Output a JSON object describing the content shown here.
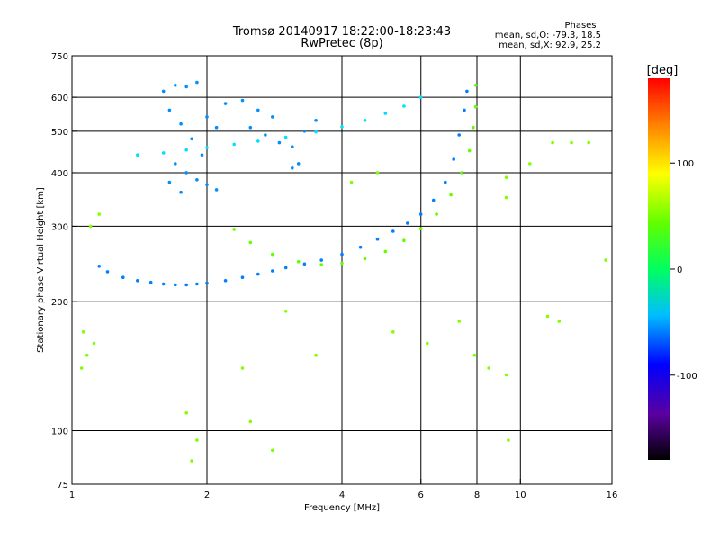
{
  "chart_data": {
    "type": "scatter",
    "title": "Tromsø 20140917 18:22:00-18:23:43",
    "subtitle": "RwPretec (8p)",
    "stats": {
      "heading": "Phases",
      "line1": "mean, sd,O: -79.3, 18.5",
      "line2": "mean, sd,X:  92.9, 25.2"
    },
    "xlabel": "Frequency [MHz]",
    "ylabel": "Stationary phase Virtual Height [km]",
    "x_scale": "log",
    "y_scale": "log",
    "xlim": [
      1,
      16
    ],
    "ylim": [
      75,
      750
    ],
    "x_ticks": [
      {
        "value": 1,
        "label": "1"
      },
      {
        "value": 2,
        "label": "2"
      },
      {
        "value": 4,
        "label": "4"
      },
      {
        "value": 6,
        "label": "6"
      },
      {
        "value": 8,
        "label": "8"
      },
      {
        "value": 10,
        "label": "10"
      },
      {
        "value": 16,
        "label": "16"
      }
    ],
    "x_gridlines": [
      2,
      4,
      6,
      8,
      10
    ],
    "y_ticks": [
      {
        "value": 75,
        "label": "75"
      },
      {
        "value": 100,
        "label": "100"
      },
      {
        "value": 200,
        "label": "200"
      },
      {
        "value": 300,
        "label": "300"
      },
      {
        "value": 400,
        "label": "400"
      },
      {
        "value": 500,
        "label": "500"
      },
      {
        "value": 600,
        "label": "600"
      },
      {
        "value": 750,
        "label": "750"
      }
    ],
    "y_gridlines": [
      100,
      200,
      300,
      400,
      500,
      600
    ],
    "colorbar": {
      "label": "[deg]",
      "range": [
        -180,
        180
      ],
      "ticks": [
        {
          "value": 100,
          "label": "100"
        },
        {
          "value": 0,
          "label": "0"
        },
        {
          "value": -100,
          "label": "-100"
        }
      ]
    },
    "series": [
      {
        "role": "o-trace-low",
        "points": [
          [
            1.15,
            242
          ],
          [
            1.2,
            235
          ],
          [
            1.3,
            228
          ],
          [
            1.4,
            224
          ],
          [
            1.5,
            222
          ],
          [
            1.6,
            220
          ],
          [
            1.7,
            219
          ],
          [
            1.8,
            219
          ],
          [
            1.9,
            220
          ],
          [
            2.0,
            221
          ],
          [
            2.2,
            224
          ],
          [
            2.4,
            228
          ],
          [
            2.6,
            232
          ],
          [
            2.8,
            236
          ],
          [
            3.0,
            240
          ],
          [
            3.3,
            245
          ],
          [
            3.6,
            250
          ],
          [
            4.0,
            258
          ],
          [
            4.4,
            268
          ],
          [
            4.8,
            280
          ],
          [
            5.2,
            292
          ],
          [
            5.6,
            305
          ],
          [
            6.0,
            320
          ],
          [
            6.4,
            345
          ],
          [
            6.8,
            380
          ],
          [
            7.1,
            430
          ],
          [
            7.3,
            490
          ],
          [
            7.5,
            560
          ],
          [
            7.6,
            620
          ]
        ],
        "phase": -100
      },
      {
        "role": "x-trace-low",
        "points": [
          [
            2.3,
            295
          ],
          [
            2.5,
            275
          ],
          [
            2.8,
            258
          ],
          [
            3.2,
            248
          ],
          [
            3.6,
            244
          ],
          [
            4.0,
            246
          ],
          [
            4.5,
            252
          ],
          [
            5.0,
            262
          ],
          [
            5.5,
            278
          ],
          [
            6.0,
            296
          ],
          [
            6.5,
            320
          ],
          [
            7.0,
            355
          ],
          [
            7.4,
            400
          ],
          [
            7.7,
            450
          ],
          [
            7.85,
            510
          ],
          [
            7.95,
            570
          ],
          [
            7.95,
            640
          ]
        ],
        "phase": 50
      },
      {
        "role": "o-trace-high",
        "points": [
          [
            1.4,
            440
          ],
          [
            1.6,
            445
          ],
          [
            1.8,
            452
          ],
          [
            2.0,
            458
          ],
          [
            2.3,
            466
          ],
          [
            2.6,
            474
          ],
          [
            3.0,
            484
          ],
          [
            3.5,
            498
          ],
          [
            4.0,
            512
          ],
          [
            4.5,
            530
          ],
          [
            5.0,
            550
          ],
          [
            5.5,
            572
          ],
          [
            6.0,
            600
          ]
        ],
        "phase": -70
      },
      {
        "role": "cluster-band",
        "points": [
          [
            1.6,
            620
          ],
          [
            1.7,
            640
          ],
          [
            1.8,
            635
          ],
          [
            1.9,
            650
          ],
          [
            1.65,
            560
          ],
          [
            1.75,
            520
          ],
          [
            1.85,
            480
          ],
          [
            1.95,
            440
          ],
          [
            1.7,
            420
          ],
          [
            1.8,
            400
          ],
          [
            1.9,
            385
          ],
          [
            2.0,
            375
          ],
          [
            2.1,
            365
          ],
          [
            1.65,
            380
          ],
          [
            1.75,
            360
          ],
          [
            2.0,
            540
          ],
          [
            2.1,
            510
          ],
          [
            2.2,
            580
          ],
          [
            2.4,
            590
          ],
          [
            2.6,
            560
          ],
          [
            2.8,
            540
          ],
          [
            2.5,
            510
          ],
          [
            2.7,
            490
          ],
          [
            2.9,
            470
          ],
          [
            3.1,
            460
          ],
          [
            3.3,
            500
          ],
          [
            3.5,
            530
          ],
          [
            3.2,
            420
          ],
          [
            3.1,
            410
          ]
        ],
        "phase": -95
      },
      {
        "role": "scatter-points",
        "points": [
          [
            1.05,
            140
          ],
          [
            1.08,
            150
          ],
          [
            1.12,
            160
          ],
          [
            1.06,
            170
          ],
          [
            1.1,
            300
          ],
          [
            1.15,
            320
          ],
          [
            1.8,
            110
          ],
          [
            1.9,
            95
          ],
          [
            1.85,
            85
          ],
          [
            2.4,
            140
          ],
          [
            2.5,
            105
          ],
          [
            2.8,
            90
          ],
          [
            3.0,
            190
          ],
          [
            3.5,
            150
          ],
          [
            4.2,
            380
          ],
          [
            4.8,
            400
          ],
          [
            5.2,
            170
          ],
          [
            6.2,
            160
          ],
          [
            7.3,
            180
          ],
          [
            7.9,
            150
          ],
          [
            8.5,
            140
          ],
          [
            9.3,
            390
          ],
          [
            9.3,
            350
          ],
          [
            9.3,
            135
          ],
          [
            9.4,
            95
          ],
          [
            10.5,
            420
          ],
          [
            11.8,
            470
          ],
          [
            13.0,
            470
          ],
          [
            14.2,
            470
          ],
          [
            15.5,
            250
          ],
          [
            11.5,
            185
          ],
          [
            12.2,
            180
          ]
        ],
        "phase": 60
      }
    ]
  }
}
